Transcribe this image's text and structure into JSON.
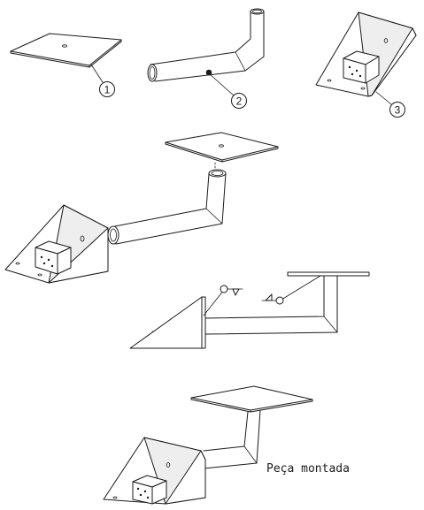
{
  "callouts": {
    "part1": "1",
    "part2": "2",
    "part3": "3"
  },
  "caption": "Peça montada"
}
